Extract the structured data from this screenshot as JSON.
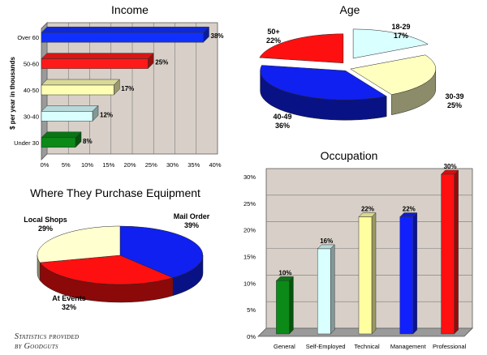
{
  "chart_data": [
    {
      "type": "bar",
      "orientation": "horizontal",
      "title": "Income",
      "ylabel": "$ per year in thousands",
      "categories": [
        "Under 30",
        "30-40",
        "40-50",
        "50-60",
        "Over 60"
      ],
      "values": [
        8,
        12,
        17,
        25,
        38
      ],
      "value_labels": [
        "8%",
        "12%",
        "17%",
        "25%",
        "38%"
      ],
      "colors": [
        "#0b8a18",
        "#d9ffff",
        "#ffffb4",
        "#ff1a1a",
        "#1030ff"
      ],
      "xlim": [
        0,
        40
      ],
      "xticks": [
        "0%",
        "5%",
        "10%",
        "15%",
        "20%",
        "25%",
        "30%",
        "35%",
        "40%"
      ],
      "grid": true
    },
    {
      "type": "pie",
      "title": "Age",
      "slices": [
        {
          "label": "18-29",
          "value": 17,
          "value_label": "17%",
          "color": "#d9ffff"
        },
        {
          "label": "30-39",
          "value": 25,
          "value_label": "25%",
          "color": "#ffffc0"
        },
        {
          "label": "40-49",
          "value": 36,
          "value_label": "36%",
          "color": "#1020f0"
        },
        {
          "label": "50+",
          "value": 22,
          "value_label": "22%",
          "color": "#ff1010"
        }
      ]
    },
    {
      "type": "pie",
      "title": "Where They Purchase Equipment",
      "slices": [
        {
          "label": "Mail Order",
          "value": 39,
          "value_label": "39%",
          "color": "#1020f0"
        },
        {
          "label": "At Events",
          "value": 32,
          "value_label": "32%",
          "color": "#ff1010"
        },
        {
          "label": "Local Shops",
          "value": 29,
          "value_label": "29%",
          "color": "#ffffd0"
        }
      ]
    },
    {
      "type": "bar",
      "title": "Occupation",
      "categories": [
        "General",
        "Self-Employed",
        "Technical",
        "Management",
        "Professional"
      ],
      "values": [
        10,
        16,
        22,
        22,
        30
      ],
      "value_labels": [
        "10%",
        "16%",
        "22%",
        "22%",
        "30%"
      ],
      "colors": [
        "#0b8a18",
        "#d9ffff",
        "#ffffa0",
        "#1020ff",
        "#ff1010"
      ],
      "ylim": [
        0,
        30
      ],
      "yticks": [
        "0%",
        "5%",
        "10%",
        "15%",
        "20%",
        "25%",
        "30%"
      ],
      "grid": true
    }
  ],
  "credit": {
    "line1": "Statistics provided",
    "line2": "by Goodguts"
  }
}
